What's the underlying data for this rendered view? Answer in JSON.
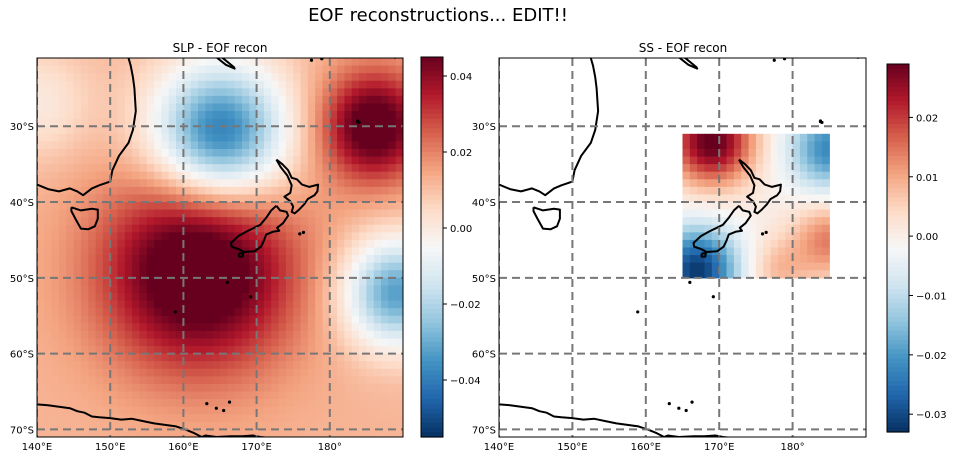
{
  "suptitle": "EOF reconstructions... EDIT!!",
  "chart_data": [
    {
      "type": "heatmap",
      "title": "SLP - EOF recon",
      "x_ticks": [
        {
          "v": 140,
          "t": "140°E"
        },
        {
          "v": 150,
          "t": "150°E"
        },
        {
          "v": 160,
          "t": "160°E"
        },
        {
          "v": 170,
          "t": "170°E"
        },
        {
          "v": 180,
          "t": "180°"
        }
      ],
      "y_ticks": [
        {
          "v": -30,
          "t": "30°S"
        },
        {
          "v": -40,
          "t": "40°S"
        },
        {
          "v": -50,
          "t": "50°S"
        },
        {
          "v": -60,
          "t": "60°S"
        },
        {
          "v": -70,
          "t": "70°S"
        }
      ],
      "xlim": [
        140,
        190
      ],
      "ylim": [
        -71,
        -21
      ],
      "field_extent": {
        "lon": [
          140,
          190
        ],
        "lat": [
          -71,
          -21
        ]
      },
      "colorbar": {
        "vmin": -0.055,
        "vmax": 0.045,
        "ticks": [
          {
            "v": 0.04,
            "t": "0.04"
          },
          {
            "v": 0.02,
            "t": "0.02"
          },
          {
            "v": 0.0,
            "t": "0.00"
          },
          {
            "v": -0.02,
            "t": "−0.02"
          },
          {
            "v": -0.04,
            "t": "−0.04"
          }
        ]
      },
      "features": [
        {
          "lon": 165,
          "lat": -31,
          "amp": -0.055,
          "sigma": 6.5
        },
        {
          "lon": 162,
          "lat": -49,
          "amp": 0.045,
          "sigma": 9
        },
        {
          "lon": 186,
          "lat": -30,
          "amp": 0.04,
          "sigma": 5
        },
        {
          "lon": 189,
          "lat": -52,
          "amp": -0.045,
          "sigma": 5
        },
        {
          "lon": 140,
          "lat": -27,
          "amp": -0.012,
          "sigma": 5
        }
      ],
      "background": 0.012,
      "cmap": "RdBu_r",
      "grid": true
    },
    {
      "type": "heatmap",
      "title": "SS - EOF recon",
      "x_ticks": [
        {
          "v": 140,
          "t": "140°E"
        },
        {
          "v": 150,
          "t": "150°E"
        },
        {
          "v": 160,
          "t": "160°E"
        },
        {
          "v": 170,
          "t": "170°E"
        },
        {
          "v": 180,
          "t": "180°"
        }
      ],
      "y_ticks": [
        {
          "v": -30,
          "t": "30°S"
        },
        {
          "v": -40,
          "t": "40°S"
        },
        {
          "v": -50,
          "t": "50°S"
        },
        {
          "v": -60,
          "t": "60°S"
        },
        {
          "v": -70,
          "t": "70°S"
        }
      ],
      "xlim": [
        140,
        190
      ],
      "ylim": [
        -71,
        -21
      ],
      "field_extent": {
        "lon": [
          165,
          185
        ],
        "lat": [
          -50,
          -31
        ]
      },
      "colorbar": {
        "vmin": -0.033,
        "vmax": 0.029,
        "ticks": [
          {
            "v": 0.02,
            "t": "0.02"
          },
          {
            "v": 0.01,
            "t": "0.01"
          },
          {
            "v": 0.0,
            "t": "0.00"
          },
          {
            "v": -0.01,
            "t": "−0.01"
          },
          {
            "v": -0.02,
            "t": "−0.02"
          },
          {
            "v": -0.03,
            "t": "−0.03"
          }
        ]
      },
      "features": [
        {
          "lon": 169,
          "lat": -32,
          "amp": 0.03,
          "sigma": 4
        },
        {
          "lon": 185,
          "lat": -33,
          "amp": -0.022,
          "sigma": 4
        },
        {
          "lon": 185,
          "lat": -45,
          "amp": 0.014,
          "sigma": 3.5
        },
        {
          "lon": 167,
          "lat": -49,
          "amp": -0.032,
          "sigma": 4
        },
        {
          "lon": 178,
          "lat": -49,
          "amp": 0.008,
          "sigma": 3
        }
      ],
      "background": 0.0,
      "cmap": "RdBu_r",
      "grid": true
    }
  ],
  "coastlines": {
    "australia_se": [
      [
        140,
        -37.7
      ],
      [
        141.5,
        -38.3
      ],
      [
        143,
        -38.6
      ],
      [
        144.5,
        -38.2
      ],
      [
        145.5,
        -38.6
      ],
      [
        146.3,
        -39.1
      ],
      [
        147.5,
        -38.2
      ],
      [
        148.5,
        -37.8
      ],
      [
        150,
        -37.3
      ],
      [
        150.3,
        -35.8
      ],
      [
        151.2,
        -33.9
      ],
      [
        152.5,
        -32.2
      ],
      [
        153.1,
        -30.5
      ],
      [
        153.5,
        -28
      ],
      [
        153.3,
        -25
      ],
      [
        153.1,
        -23.5
      ],
      [
        152.8,
        -22
      ],
      [
        152.5,
        -21
      ]
    ],
    "tasmania": [
      [
        144.7,
        -40.7
      ],
      [
        146,
        -41.1
      ],
      [
        147.5,
        -40.9
      ],
      [
        148.3,
        -41
      ],
      [
        148.3,
        -42.2
      ],
      [
        147.9,
        -43.2
      ],
      [
        147,
        -43.6
      ],
      [
        146,
        -43.5
      ],
      [
        145.3,
        -42.3
      ],
      [
        144.7,
        -41.2
      ],
      [
        144.7,
        -40.7
      ]
    ],
    "nz_north": [
      [
        172.7,
        -34.4
      ],
      [
        173.5,
        -35
      ],
      [
        174.3,
        -35.8
      ],
      [
        174.8,
        -36.8
      ],
      [
        175.5,
        -37
      ],
      [
        176.2,
        -37.7
      ],
      [
        177.2,
        -38
      ],
      [
        178.4,
        -37.7
      ],
      [
        178.3,
        -38.6
      ],
      [
        177.9,
        -39.1
      ],
      [
        177,
        -39.6
      ],
      [
        176.5,
        -40.3
      ],
      [
        175.8,
        -41
      ],
      [
        175.2,
        -41.5
      ],
      [
        174.8,
        -41.3
      ],
      [
        175,
        -40.6
      ],
      [
        174.6,
        -39.9
      ],
      [
        173.8,
        -39.3
      ],
      [
        174.6,
        -38.8
      ],
      [
        174.8,
        -37.8
      ],
      [
        174.2,
        -36.5
      ],
      [
        173.3,
        -35.4
      ],
      [
        172.7,
        -34.4
      ]
    ],
    "nz_south": [
      [
        172.7,
        -40.5
      ],
      [
        173.2,
        -41.1
      ],
      [
        174.1,
        -41.3
      ],
      [
        174.3,
        -41.8
      ],
      [
        173.6,
        -42.8
      ],
      [
        172.8,
        -43.4
      ],
      [
        173.1,
        -43.8
      ],
      [
        172.3,
        -43.9
      ],
      [
        171.3,
        -44.3
      ],
      [
        171,
        -45.1
      ],
      [
        170.6,
        -45.9
      ],
      [
        169.7,
        -46.5
      ],
      [
        168.3,
        -46.6
      ],
      [
        167.5,
        -46.2
      ],
      [
        166.6,
        -45.9
      ],
      [
        166.5,
        -45.4
      ],
      [
        167.5,
        -44.5
      ],
      [
        168.6,
        -43.9
      ],
      [
        170.5,
        -43
      ],
      [
        171.3,
        -42.1
      ],
      [
        172,
        -41.1
      ],
      [
        172.7,
        -40.5
      ]
    ],
    "stewart": [
      [
        167.6,
        -46.8
      ],
      [
        168.2,
        -46.7
      ],
      [
        168.1,
        -47.2
      ],
      [
        167.6,
        -47.2
      ],
      [
        167.6,
        -46.8
      ]
    ],
    "antarctica": [
      [
        140,
        -66.7
      ],
      [
        141.5,
        -66.8
      ],
      [
        143,
        -67
      ],
      [
        144.5,
        -67.2
      ],
      [
        145.5,
        -67.6
      ],
      [
        146.5,
        -67.8
      ],
      [
        147.5,
        -68.3
      ],
      [
        148.5,
        -68.4
      ],
      [
        150,
        -68.5
      ],
      [
        151.5,
        -68.7
      ],
      [
        153,
        -68.6
      ],
      [
        154.5,
        -68.9
      ],
      [
        156,
        -69.2
      ],
      [
        157.5,
        -69.4
      ],
      [
        159,
        -69.6
      ],
      [
        160.5,
        -70.1
      ],
      [
        161.5,
        -70.5
      ],
      [
        162.5,
        -71
      ],
      [
        163,
        -70.8
      ],
      [
        164.5,
        -71
      ],
      [
        166.5,
        -70.9
      ],
      [
        168,
        -70.9
      ],
      [
        169.5,
        -70.8
      ],
      [
        170.5,
        -71
      ],
      [
        171.5,
        -71.1
      ]
    ],
    "new_caledonia": [
      [
        164.1,
        -20.2
      ],
      [
        165.5,
        -21.1
      ],
      [
        166.9,
        -22.2
      ],
      [
        167,
        -22.4
      ],
      [
        165.8,
        -21.9
      ],
      [
        164.5,
        -20.9
      ],
      [
        164.1,
        -20.2
      ]
    ],
    "islands": [
      [
        183.8,
        -29.3
      ],
      [
        183.8,
        -29.4
      ],
      [
        184,
        -29.5
      ],
      [
        188.9,
        -20.9
      ],
      [
        177.5,
        -21.3
      ],
      [
        178.9,
        -21.1
      ],
      [
        176.4,
        -44
      ],
      [
        175.9,
        -44.2
      ],
      [
        166,
        -50.6
      ],
      [
        169.2,
        -52.5
      ],
      [
        158.9,
        -54.5
      ],
      [
        163.2,
        -66.6
      ],
      [
        164.5,
        -67.2
      ],
      [
        165.5,
        -67.5
      ],
      [
        166.3,
        -66.4
      ]
    ]
  }
}
